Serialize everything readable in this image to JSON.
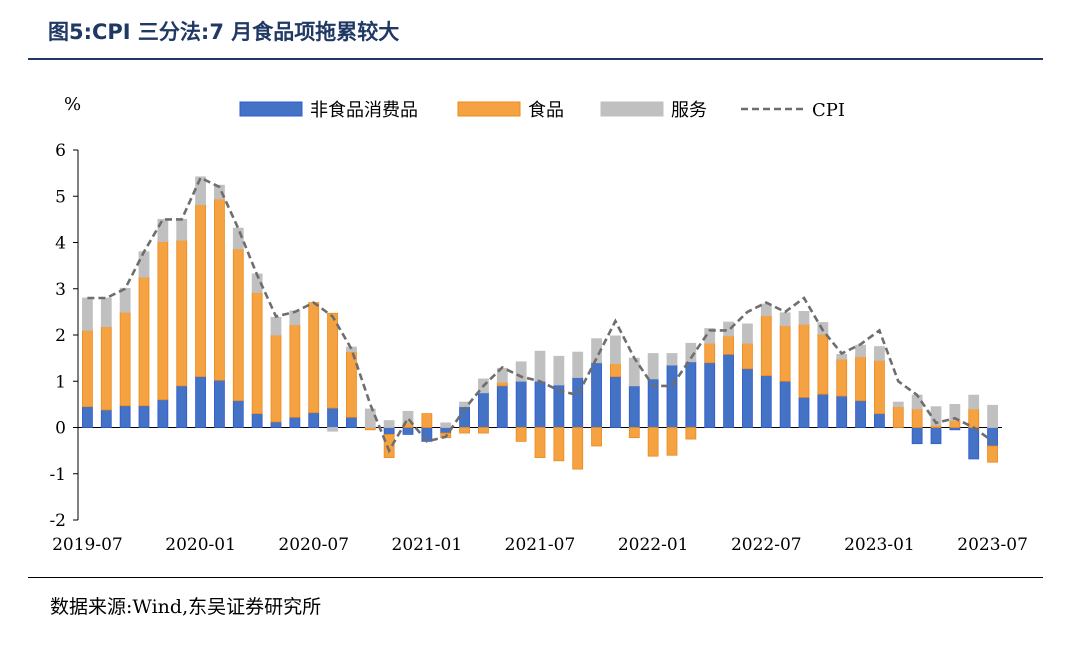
{
  "figure": {
    "title": "图5:CPI 三分法:7 月食品项拖累较大",
    "source": "数据来源:Wind,东吴证券研究所"
  },
  "chart_data": {
    "type": "bar",
    "stacked": true,
    "unit_label": "%",
    "ylim": [
      -2,
      6
    ],
    "yticks": [
      -2,
      -1,
      0,
      1,
      2,
      3,
      4,
      5,
      6
    ],
    "x": [
      "2019-07",
      "2019-08",
      "2019-09",
      "2019-10",
      "2019-11",
      "2019-12",
      "2020-01",
      "2020-02",
      "2020-03",
      "2020-04",
      "2020-05",
      "2020-06",
      "2020-07",
      "2020-08",
      "2020-09",
      "2020-10",
      "2020-11",
      "2020-12",
      "2021-01",
      "2021-02",
      "2021-03",
      "2021-04",
      "2021-05",
      "2021-06",
      "2021-07",
      "2021-08",
      "2021-09",
      "2021-10",
      "2021-11",
      "2021-12",
      "2022-01",
      "2022-02",
      "2022-03",
      "2022-04",
      "2022-05",
      "2022-06",
      "2022-07",
      "2022-08",
      "2022-09",
      "2022-10",
      "2022-11",
      "2022-12",
      "2023-01",
      "2023-02",
      "2023-03",
      "2023-04",
      "2023-05",
      "2023-06",
      "2023-07"
    ],
    "xtick_labels": [
      "2019-07",
      "2020-01",
      "2020-07",
      "2021-01",
      "2021-07",
      "2022-01",
      "2022-07",
      "2023-01",
      "2023-07"
    ],
    "legend_position": "top",
    "colors": {
      "nonfood": "#4472c4",
      "nonfood_edge": "#2f5bd6",
      "food": "#f5a243",
      "food_edge": "#ec8a1c",
      "service": "#c0c0c0",
      "cpi": "#6e6e6e"
    },
    "series": [
      {
        "name": "非食品消费品",
        "kind": "bar",
        "values": [
          0.45,
          0.38,
          0.47,
          0.47,
          0.6,
          0.9,
          1.1,
          1.02,
          0.58,
          0.3,
          0.12,
          0.22,
          0.32,
          0.42,
          0.22,
          0.0,
          -0.15,
          -0.15,
          -0.3,
          -0.12,
          0.45,
          0.75,
          0.9,
          1.0,
          1.0,
          0.92,
          1.08,
          1.4,
          1.1,
          0.9,
          1.05,
          1.35,
          1.42,
          1.4,
          1.58,
          1.27,
          1.12,
          1.0,
          0.65,
          0.72,
          0.68,
          0.58,
          0.3,
          0.0,
          -0.35,
          -0.35,
          -0.05,
          -0.68,
          -0.4
        ]
      },
      {
        "name": "食品",
        "kind": "bar",
        "values": [
          1.65,
          1.8,
          2.02,
          2.78,
          3.42,
          3.15,
          3.72,
          3.92,
          3.28,
          2.62,
          1.88,
          2.0,
          2.38,
          2.05,
          1.42,
          -0.05,
          -0.5,
          0.1,
          0.3,
          -0.1,
          -0.12,
          -0.12,
          0.08,
          -0.3,
          -0.65,
          -0.72,
          -0.9,
          -0.4,
          0.28,
          -0.22,
          -0.62,
          -0.6,
          -0.25,
          0.42,
          0.4,
          0.55,
          1.3,
          1.2,
          1.58,
          1.3,
          0.8,
          0.95,
          1.15,
          0.45,
          0.4,
          0.05,
          0.15,
          0.4,
          -0.35
        ]
      },
      {
        "name": "服务",
        "kind": "bar",
        "values": [
          0.7,
          0.62,
          0.52,
          0.55,
          0.48,
          0.45,
          0.6,
          0.3,
          0.45,
          0.4,
          0.38,
          0.3,
          0.0,
          -0.08,
          0.1,
          0.4,
          0.15,
          0.25,
          0.0,
          0.1,
          0.1,
          0.3,
          0.3,
          0.42,
          0.65,
          0.62,
          0.55,
          0.52,
          0.6,
          0.6,
          0.55,
          0.25,
          0.4,
          0.32,
          0.3,
          0.42,
          0.25,
          0.28,
          0.28,
          0.25,
          0.1,
          0.25,
          0.3,
          0.1,
          0.3,
          0.4,
          0.35,
          0.3,
          0.48
        ]
      },
      {
        "name": "CPI",
        "kind": "line",
        "dashed": true,
        "values": [
          2.8,
          2.8,
          3.0,
          3.8,
          4.5,
          4.5,
          5.4,
          5.2,
          4.3,
          3.3,
          2.4,
          2.5,
          2.7,
          2.4,
          1.7,
          0.5,
          -0.5,
          0.2,
          -0.3,
          -0.2,
          0.4,
          0.9,
          1.3,
          1.1,
          1.0,
          0.8,
          0.7,
          1.5,
          2.3,
          1.5,
          0.9,
          0.9,
          1.5,
          2.1,
          2.1,
          2.5,
          2.7,
          2.5,
          2.8,
          2.1,
          1.6,
          1.8,
          2.1,
          1.0,
          0.7,
          0.1,
          0.2,
          0.0,
          -0.3
        ]
      }
    ]
  }
}
